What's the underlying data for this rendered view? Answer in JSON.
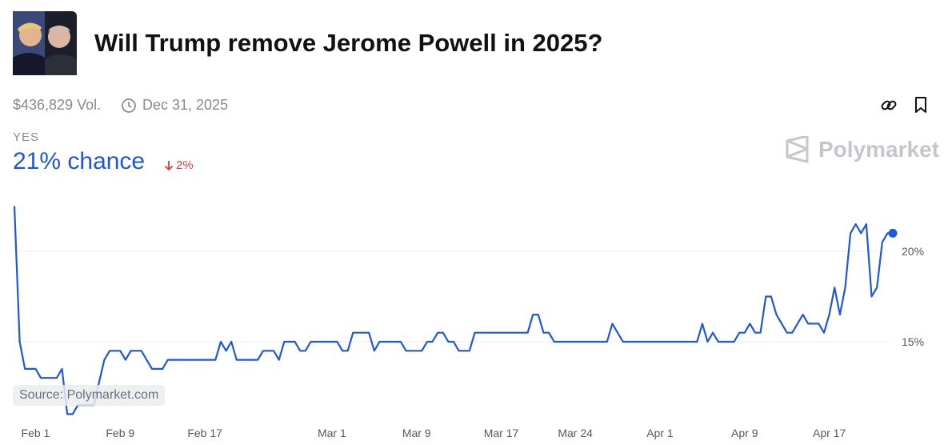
{
  "market": {
    "title": "Will Trump remove Jerome Powell in 2025?",
    "volume": "$436,829 Vol.",
    "end_date": "Dec 31, 2025",
    "outcome": "YES",
    "chance": "21% chance",
    "change": "2%",
    "brand": "Polymarket",
    "source": "Source: Polymarket.com"
  },
  "chart_data": {
    "type": "line",
    "x": [
      30,
      30.5,
      31,
      32,
      32.5,
      34,
      34.5,
      35,
      35.5,
      36,
      37.5,
      38.5,
      39,
      40,
      40.5,
      41,
      42,
      43,
      44,
      44.5,
      49,
      49.5,
      50,
      50.5,
      51,
      53,
      53.5,
      54.5,
      55,
      55.5,
      56.5,
      57,
      57.5,
      58,
      60.5,
      61,
      61.5,
      62,
      63.5,
      64,
      64.5,
      66.5,
      67,
      68.5,
      69,
      69.5,
      70,
      70.5,
      71,
      71.5,
      72,
      73,
      73.5,
      78.5,
      79,
      79.5,
      80,
      80.5,
      81,
      86,
      86.5,
      87.5,
      94.5,
      95,
      95.5,
      96,
      96.5,
      98,
      98.5,
      99,
      99.5,
      100,
      100.5,
      101,
      101.5,
      102,
      103,
      103.5,
      104.5,
      105,
      106,
      106.5,
      107,
      107.5,
      108,
      108.5,
      109,
      109.5,
      110,
      110.5,
      111,
      111.5,
      112,
      112.5,
      113
    ],
    "series": [
      {
        "name": "YES",
        "color": "#1d56e0",
        "values": [
          22.5,
          15,
          13.5,
          13.5,
          13,
          13,
          13.5,
          11,
          11,
          11.5,
          11.5,
          14,
          14.5,
          14.5,
          14,
          14.5,
          14.5,
          13.5,
          13.5,
          14,
          14,
          15,
          14.5,
          15,
          14,
          14,
          14.5,
          14.5,
          14,
          15,
          15,
          14.5,
          14.5,
          15,
          15,
          14.5,
          14.5,
          15.5,
          15.5,
          14.5,
          15,
          15,
          14.5,
          14.5,
          15,
          15,
          15.5,
          15.5,
          15,
          15,
          14.5,
          14.5,
          15.5,
          15.5,
          16.5,
          16.5,
          15.5,
          15.5,
          15,
          15,
          16,
          15,
          15,
          16,
          15,
          15.5,
          15,
          15,
          15.5,
          15.5,
          16,
          15.5,
          15.5,
          17.5,
          17.5,
          16.5,
          15.5,
          15.5,
          16.5,
          16,
          16,
          15.5,
          16.5,
          18,
          16.5,
          18,
          21,
          21.5,
          21,
          21.5,
          17.5,
          18,
          20.5,
          21,
          21
        ]
      }
    ],
    "xlim": [
      30,
      113
    ],
    "xticks": [
      {
        "value": 32,
        "label": "Feb 1"
      },
      {
        "value": 40,
        "label": "Feb 9"
      },
      {
        "value": 48,
        "label": "Feb 17"
      },
      {
        "value": 60,
        "label": "Mar 1"
      },
      {
        "value": 68,
        "label": "Mar 9"
      },
      {
        "value": 76,
        "label": "Mar 17"
      },
      {
        "value": 83,
        "label": "Mar 24"
      },
      {
        "value": 91,
        "label": "Apr 1"
      },
      {
        "value": 99,
        "label": "Apr 9"
      },
      {
        "value": 107,
        "label": "Apr 17"
      }
    ],
    "ylim": [
      10.5,
      23
    ],
    "yticks": [
      {
        "value": 15,
        "label": "15%"
      },
      {
        "value": 20,
        "label": "20%"
      }
    ],
    "grid": true
  }
}
